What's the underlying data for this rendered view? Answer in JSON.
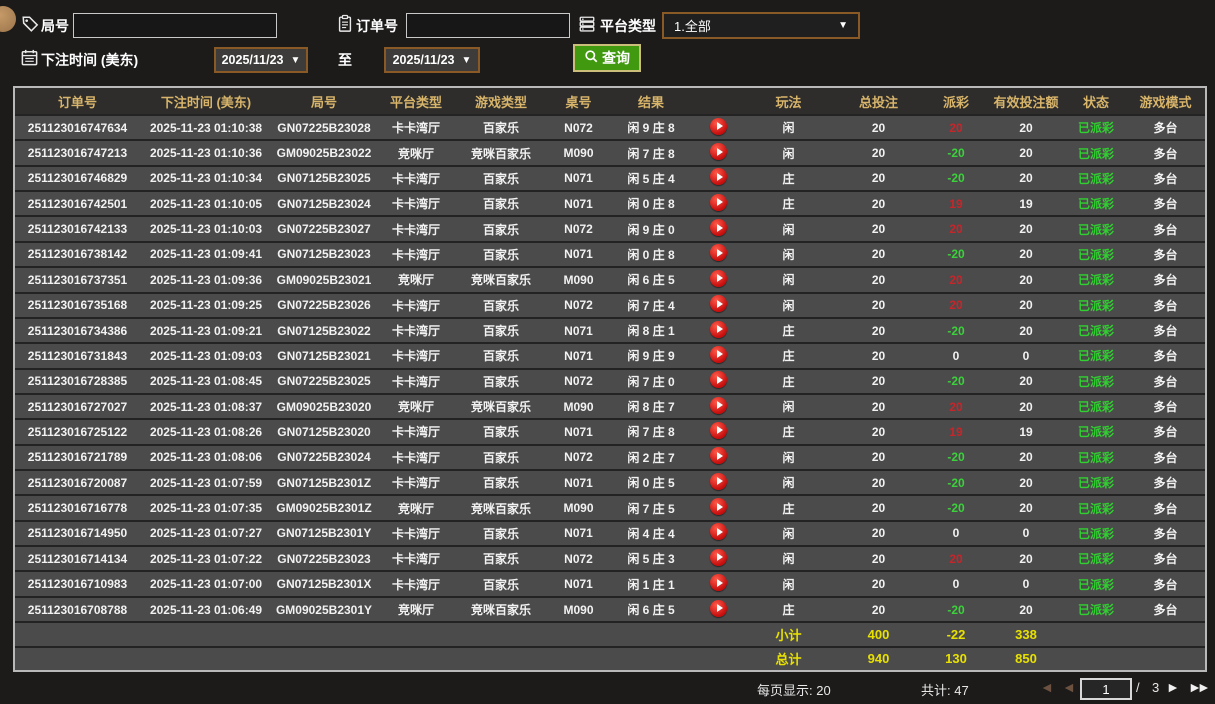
{
  "toolbar": {
    "round_label": "局号",
    "order_label": "订单号",
    "platform_label": "平台类型",
    "platform_value": "1.全部",
    "bet_time_label": "下注时间 (美东)",
    "date_from": "2025/11/23",
    "date_to": "2025/11/23",
    "to_label": "至",
    "search_label": "查询"
  },
  "table": {
    "columns": [
      "订单号",
      "下注时间 (美东)",
      "局号",
      "平台类型",
      "游戏类型",
      "桌号",
      "结果",
      "",
      "玩法",
      "总投注",
      "派彩",
      "有效投注额",
      "状态",
      "游戏模式"
    ],
    "rows": [
      {
        "order": "251123016747634",
        "time": "2025-11-23 01:10:38",
        "round": "GN07225B23028",
        "hall": "卡卡湾厅",
        "game": "百家乐",
        "table_no": "N072",
        "result": "闲 9 庄 8",
        "bet_side": "闲",
        "total_bet": 20,
        "payout": 20,
        "valid_bet": 20,
        "status": "已派彩",
        "mode": "多台"
      },
      {
        "order": "251123016747213",
        "time": "2025-11-23 01:10:36",
        "round": "GM09025B23022",
        "hall": "竞咪厅",
        "game": "竞咪百家乐",
        "table_no": "M090",
        "result": "闲 7 庄 8",
        "bet_side": "闲",
        "total_bet": 20,
        "payout": -20,
        "valid_bet": 20,
        "status": "已派彩",
        "mode": "多台"
      },
      {
        "order": "251123016746829",
        "time": "2025-11-23 01:10:34",
        "round": "GN07125B23025",
        "hall": "卡卡湾厅",
        "game": "百家乐",
        "table_no": "N071",
        "result": "闲 5 庄 4",
        "bet_side": "庄",
        "total_bet": 20,
        "payout": -20,
        "valid_bet": 20,
        "status": "已派彩",
        "mode": "多台"
      },
      {
        "order": "251123016742501",
        "time": "2025-11-23 01:10:05",
        "round": "GN07125B23024",
        "hall": "卡卡湾厅",
        "game": "百家乐",
        "table_no": "N071",
        "result": "闲 0 庄 8",
        "bet_side": "庄",
        "total_bet": 20,
        "payout": 19,
        "valid_bet": 19,
        "status": "已派彩",
        "mode": "多台"
      },
      {
        "order": "251123016742133",
        "time": "2025-11-23 01:10:03",
        "round": "GN07225B23027",
        "hall": "卡卡湾厅",
        "game": "百家乐",
        "table_no": "N072",
        "result": "闲 9 庄 0",
        "bet_side": "闲",
        "total_bet": 20,
        "payout": 20,
        "valid_bet": 20,
        "status": "已派彩",
        "mode": "多台"
      },
      {
        "order": "251123016738142",
        "time": "2025-11-23 01:09:41",
        "round": "GN07125B23023",
        "hall": "卡卡湾厅",
        "game": "百家乐",
        "table_no": "N071",
        "result": "闲 0 庄 8",
        "bet_side": "闲",
        "total_bet": 20,
        "payout": -20,
        "valid_bet": 20,
        "status": "已派彩",
        "mode": "多台"
      },
      {
        "order": "251123016737351",
        "time": "2025-11-23 01:09:36",
        "round": "GM09025B23021",
        "hall": "竞咪厅",
        "game": "竞咪百家乐",
        "table_no": "M090",
        "result": "闲 6 庄 5",
        "bet_side": "闲",
        "total_bet": 20,
        "payout": 20,
        "valid_bet": 20,
        "status": "已派彩",
        "mode": "多台"
      },
      {
        "order": "251123016735168",
        "time": "2025-11-23 01:09:25",
        "round": "GN07225B23026",
        "hall": "卡卡湾厅",
        "game": "百家乐",
        "table_no": "N072",
        "result": "闲 7 庄 4",
        "bet_side": "闲",
        "total_bet": 20,
        "payout": 20,
        "valid_bet": 20,
        "status": "已派彩",
        "mode": "多台"
      },
      {
        "order": "251123016734386",
        "time": "2025-11-23 01:09:21",
        "round": "GN07125B23022",
        "hall": "卡卡湾厅",
        "game": "百家乐",
        "table_no": "N071",
        "result": "闲 8 庄 1",
        "bet_side": "庄",
        "total_bet": 20,
        "payout": -20,
        "valid_bet": 20,
        "status": "已派彩",
        "mode": "多台"
      },
      {
        "order": "251123016731843",
        "time": "2025-11-23 01:09:03",
        "round": "GN07125B23021",
        "hall": "卡卡湾厅",
        "game": "百家乐",
        "table_no": "N071",
        "result": "闲 9 庄 9",
        "bet_side": "庄",
        "total_bet": 20,
        "payout": 0,
        "valid_bet": 0,
        "status": "已派彩",
        "mode": "多台"
      },
      {
        "order": "251123016728385",
        "time": "2025-11-23 01:08:45",
        "round": "GN07225B23025",
        "hall": "卡卡湾厅",
        "game": "百家乐",
        "table_no": "N072",
        "result": "闲 7 庄 0",
        "bet_side": "庄",
        "total_bet": 20,
        "payout": -20,
        "valid_bet": 20,
        "status": "已派彩",
        "mode": "多台"
      },
      {
        "order": "251123016727027",
        "time": "2025-11-23 01:08:37",
        "round": "GM09025B23020",
        "hall": "竞咪厅",
        "game": "竞咪百家乐",
        "table_no": "M090",
        "result": "闲 8 庄 7",
        "bet_side": "闲",
        "total_bet": 20,
        "payout": 20,
        "valid_bet": 20,
        "status": "已派彩",
        "mode": "多台"
      },
      {
        "order": "251123016725122",
        "time": "2025-11-23 01:08:26",
        "round": "GN07125B23020",
        "hall": "卡卡湾厅",
        "game": "百家乐",
        "table_no": "N071",
        "result": "闲 7 庄 8",
        "bet_side": "庄",
        "total_bet": 20,
        "payout": 19,
        "valid_bet": 19,
        "status": "已派彩",
        "mode": "多台"
      },
      {
        "order": "251123016721789",
        "time": "2025-11-23 01:08:06",
        "round": "GN07225B23024",
        "hall": "卡卡湾厅",
        "game": "百家乐",
        "table_no": "N072",
        "result": "闲 2 庄 7",
        "bet_side": "闲",
        "total_bet": 20,
        "payout": -20,
        "valid_bet": 20,
        "status": "已派彩",
        "mode": "多台"
      },
      {
        "order": "251123016720087",
        "time": "2025-11-23 01:07:59",
        "round": "GN07125B2301Z",
        "hall": "卡卡湾厅",
        "game": "百家乐",
        "table_no": "N071",
        "result": "闲 0 庄 5",
        "bet_side": "闲",
        "total_bet": 20,
        "payout": -20,
        "valid_bet": 20,
        "status": "已派彩",
        "mode": "多台"
      },
      {
        "order": "251123016716778",
        "time": "2025-11-23 01:07:35",
        "round": "GM09025B2301Z",
        "hall": "竞咪厅",
        "game": "竞咪百家乐",
        "table_no": "M090",
        "result": "闲 7 庄 5",
        "bet_side": "庄",
        "total_bet": 20,
        "payout": -20,
        "valid_bet": 20,
        "status": "已派彩",
        "mode": "多台"
      },
      {
        "order": "251123016714950",
        "time": "2025-11-23 01:07:27",
        "round": "GN07125B2301Y",
        "hall": "卡卡湾厅",
        "game": "百家乐",
        "table_no": "N071",
        "result": "闲 4 庄 4",
        "bet_side": "闲",
        "total_bet": 20,
        "payout": 0,
        "valid_bet": 0,
        "status": "已派彩",
        "mode": "多台"
      },
      {
        "order": "251123016714134",
        "time": "2025-11-23 01:07:22",
        "round": "GN07225B23023",
        "hall": "卡卡湾厅",
        "game": "百家乐",
        "table_no": "N072",
        "result": "闲 5 庄 3",
        "bet_side": "闲",
        "total_bet": 20,
        "payout": 20,
        "valid_bet": 20,
        "status": "已派彩",
        "mode": "多台"
      },
      {
        "order": "251123016710983",
        "time": "2025-11-23 01:07:00",
        "round": "GN07125B2301X",
        "hall": "卡卡湾厅",
        "game": "百家乐",
        "table_no": "N071",
        "result": "闲 1 庄 1",
        "bet_side": "闲",
        "total_bet": 20,
        "payout": 0,
        "valid_bet": 0,
        "status": "已派彩",
        "mode": "多台"
      },
      {
        "order": "251123016708788",
        "time": "2025-11-23 01:06:49",
        "round": "GM09025B2301Y",
        "hall": "竞咪厅",
        "game": "竞咪百家乐",
        "table_no": "M090",
        "result": "闲 6 庄 5",
        "bet_side": "庄",
        "total_bet": 20,
        "payout": -20,
        "valid_bet": 20,
        "status": "已派彩",
        "mode": "多台"
      }
    ],
    "summary": [
      {
        "label": "小计",
        "total_bet": 400,
        "payout": -22,
        "valid_bet": 338
      },
      {
        "label": "总计",
        "total_bet": 940,
        "payout": 130,
        "valid_bet": 850
      }
    ]
  },
  "pagination": {
    "per_page_label": "每页显示: 20",
    "total_label": "共计: 47",
    "current_page": "1",
    "page_sep": "/",
    "total_pages": "3"
  },
  "colors": {
    "header_gold": "#d7b46a",
    "win_red": "#c8252b",
    "loss_green": "#3bd23b",
    "status_green": "#30d030",
    "summary_yellow": "#e8e100",
    "query_green": "#41990f",
    "picker_border_brown": "#8a5a26"
  }
}
